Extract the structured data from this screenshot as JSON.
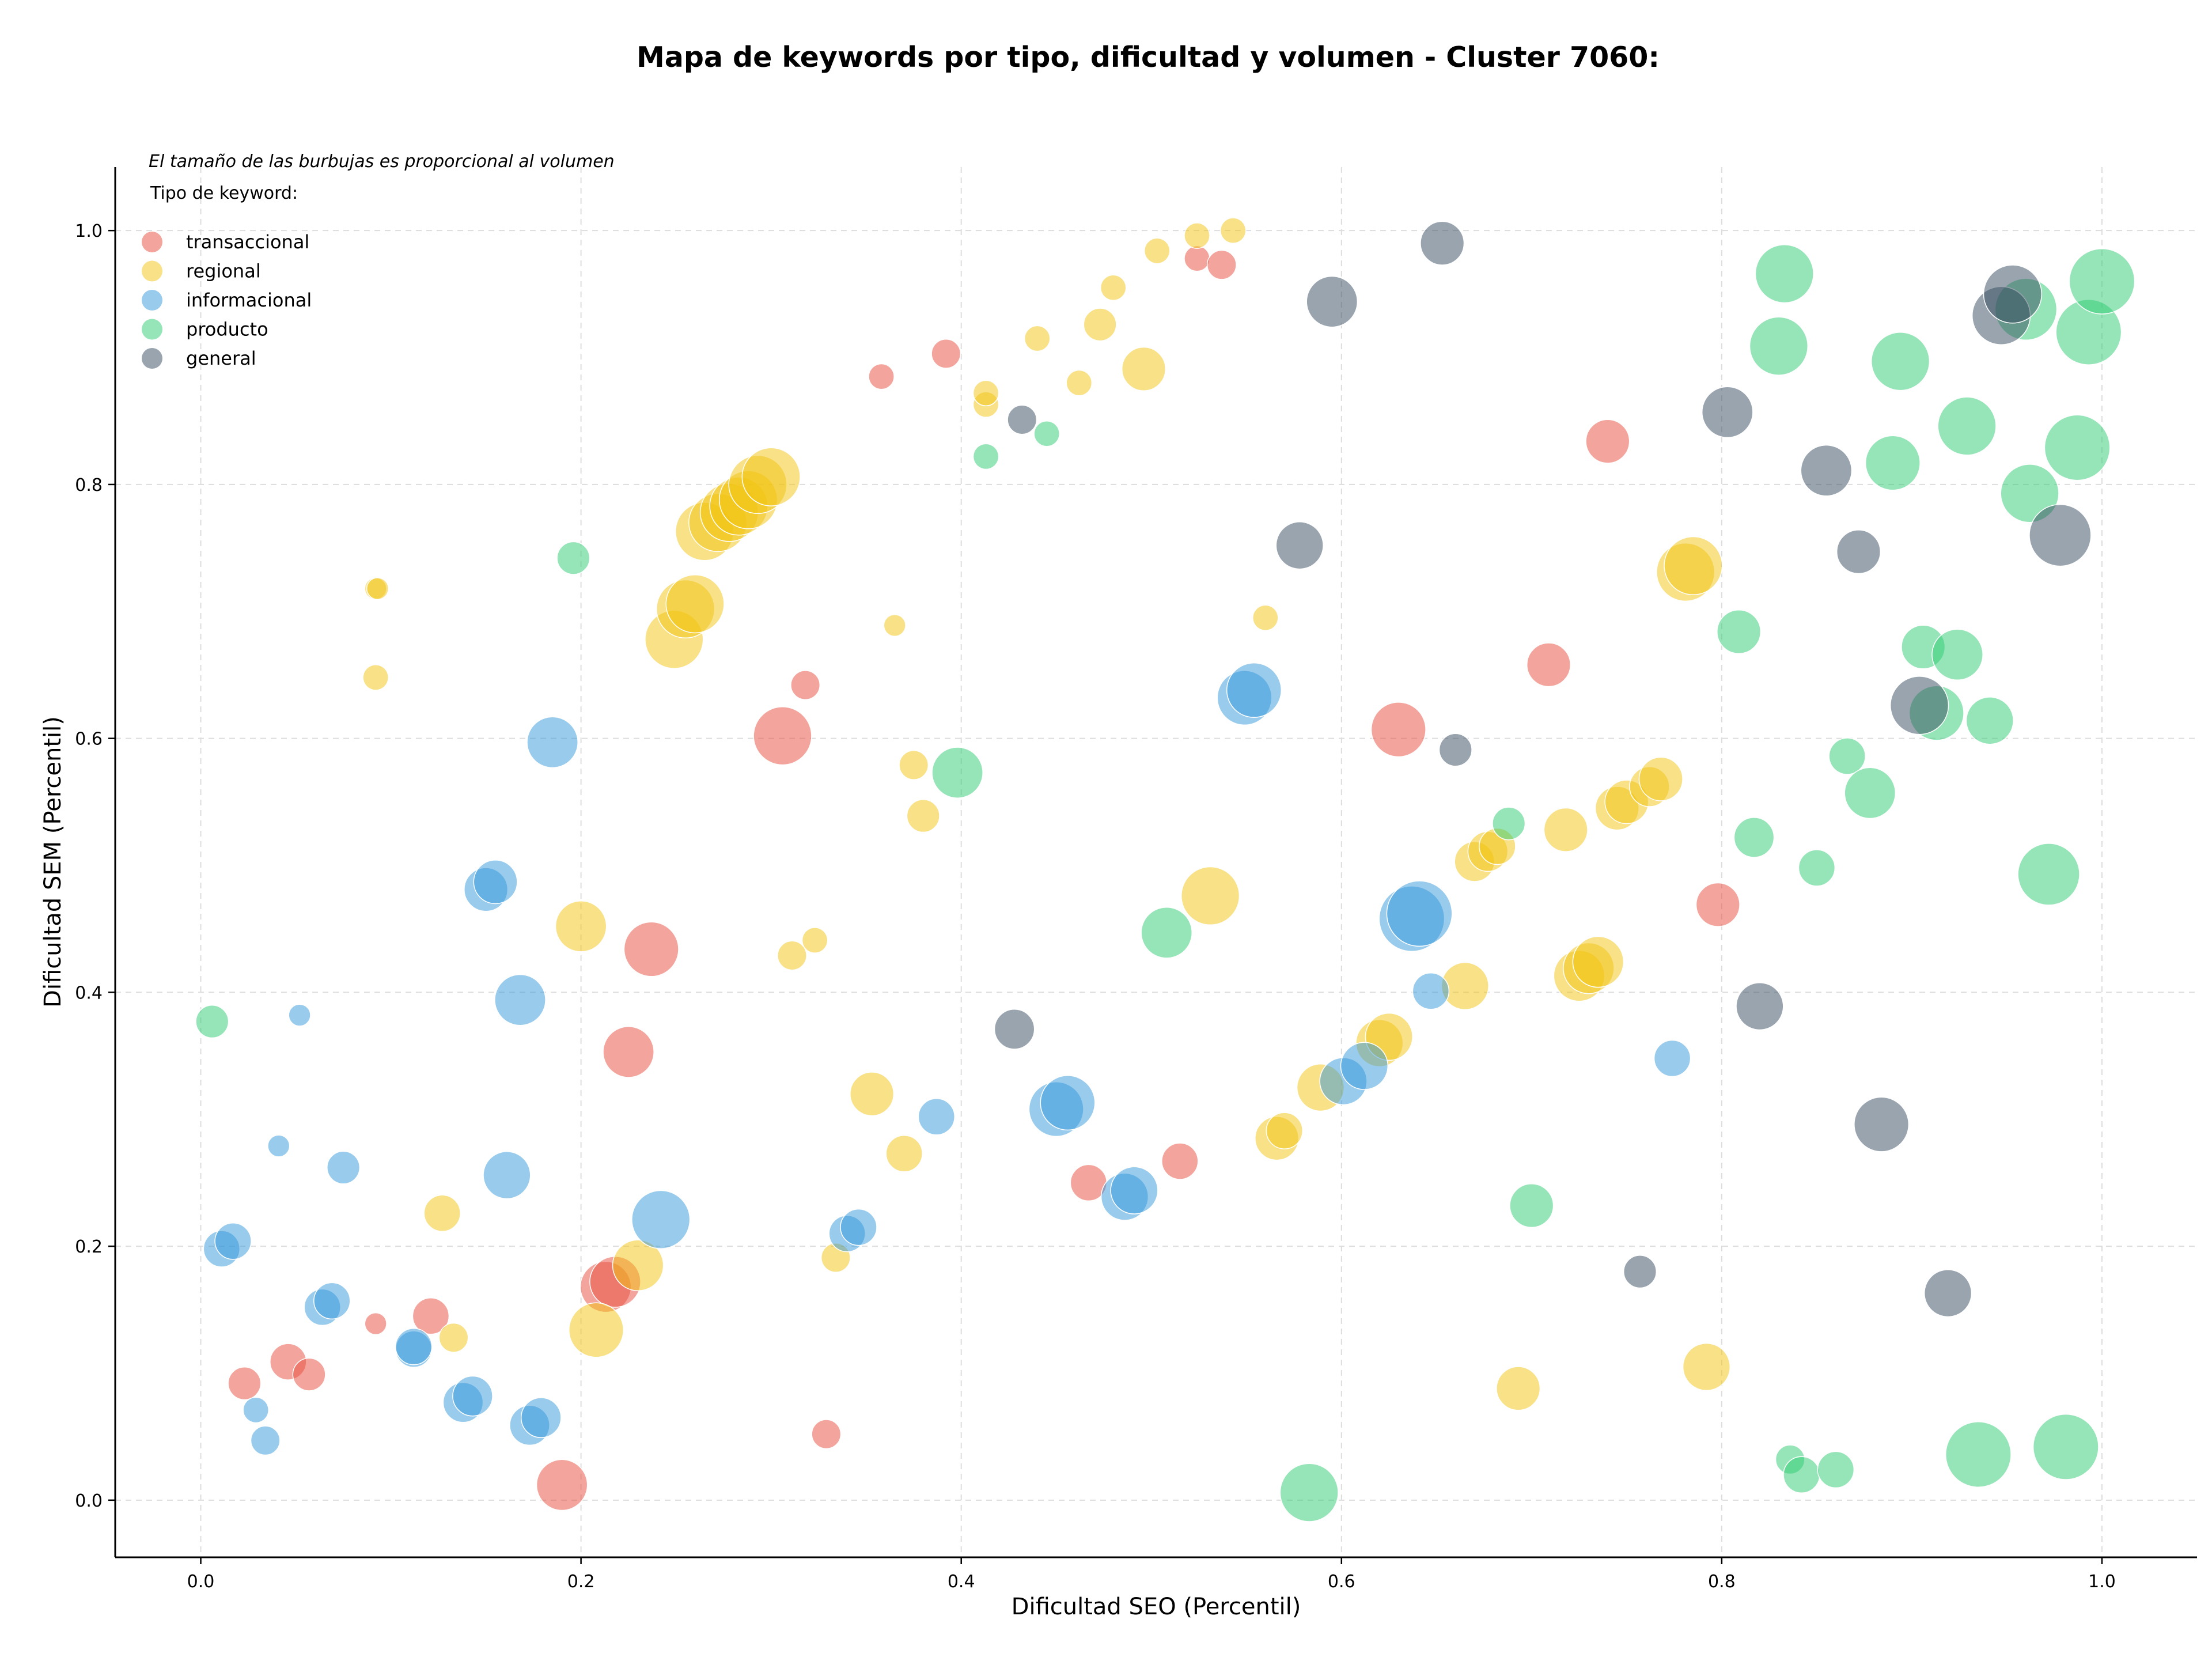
{
  "chart_data": {
    "type": "scatter",
    "title": "Mapa de keywords por tipo, dificultad y volumen - Cluster 7060:",
    "xlabel": "Dificultad SEO (Percentil)",
    "ylabel": "Dificultad SEM (Percentil)",
    "xlim": [
      -0.045,
      1.05
    ],
    "ylim": [
      -0.045,
      1.05
    ],
    "xticks": [
      0.0,
      0.2,
      0.4,
      0.6,
      0.8,
      1.0
    ],
    "yticks": [
      0.0,
      0.2,
      0.4,
      0.6,
      0.8,
      1.0
    ],
    "xtick_labels": [
      "0.0",
      "0.2",
      "0.4",
      "0.6",
      "0.8",
      "1.0"
    ],
    "ytick_labels": [
      "0.0",
      "0.2",
      "0.4",
      "0.6",
      "0.8",
      "1.0"
    ],
    "grid": true,
    "note": "El tamaño de las burbujas es proporcional al volumen",
    "legend_title": "Tipo de keyword:",
    "legend_position": "top-left",
    "series": [
      {
        "name": "transaccional",
        "color": "#e74c3c",
        "points": [
          [
            0.023,
            0.092,
            4.5
          ],
          [
            0.046,
            0.109,
            5
          ],
          [
            0.057,
            0.099,
            4.5
          ],
          [
            0.092,
            0.139,
            3
          ],
          [
            0.121,
            0.145,
            5
          ],
          [
            0.19,
            0.012,
            7
          ],
          [
            0.213,
            0.168,
            7
          ],
          [
            0.218,
            0.172,
            7
          ],
          [
            0.225,
            0.353,
            7
          ],
          [
            0.237,
            0.434,
            7.5
          ],
          [
            0.306,
            0.602,
            8
          ],
          [
            0.318,
            0.642,
            4
          ],
          [
            0.329,
            0.052,
            4
          ],
          [
            0.358,
            0.885,
            3.5
          ],
          [
            0.392,
            0.903,
            4
          ],
          [
            0.467,
            0.25,
            5
          ],
          [
            0.515,
            0.267,
            5
          ],
          [
            0.524,
            0.978,
            3.5
          ],
          [
            0.537,
            0.973,
            4
          ],
          [
            0.63,
            0.607,
            7.5
          ],
          [
            0.709,
            0.658,
            6
          ],
          [
            0.74,
            0.834,
            6
          ],
          [
            0.798,
            0.469,
            6
          ]
        ]
      },
      {
        "name": "regional",
        "color": "#f1c40f",
        "points": [
          [
            0.092,
            0.718,
            3
          ],
          [
            0.093,
            0.718,
            3
          ],
          [
            0.092,
            0.648,
            3.5
          ],
          [
            0.127,
            0.226,
            5
          ],
          [
            0.133,
            0.128,
            4
          ],
          [
            0.2,
            0.452,
            7
          ],
          [
            0.208,
            0.134,
            7.5
          ],
          [
            0.23,
            0.185,
            7
          ],
          [
            0.249,
            0.678,
            8
          ],
          [
            0.255,
            0.702,
            8
          ],
          [
            0.26,
            0.706,
            8
          ],
          [
            0.265,
            0.763,
            8
          ],
          [
            0.272,
            0.77,
            8
          ],
          [
            0.278,
            0.778,
            8
          ],
          [
            0.283,
            0.783,
            8
          ],
          [
            0.288,
            0.788,
            8
          ],
          [
            0.293,
            0.8,
            8
          ],
          [
            0.3,
            0.806,
            8
          ],
          [
            0.311,
            0.429,
            4
          ],
          [
            0.323,
            0.441,
            3.5
          ],
          [
            0.334,
            0.191,
            4
          ],
          [
            0.353,
            0.32,
            6
          ],
          [
            0.37,
            0.273,
            5
          ],
          [
            0.375,
            0.579,
            4
          ],
          [
            0.38,
            0.539,
            4.5
          ],
          [
            0.365,
            0.689,
            3
          ],
          [
            0.413,
            0.863,
            3.5
          ],
          [
            0.413,
            0.872,
            3.5
          ],
          [
            0.44,
            0.915,
            3.5
          ],
          [
            0.462,
            0.88,
            3.5
          ],
          [
            0.473,
            0.926,
            4.5
          ],
          [
            0.48,
            0.955,
            3.5
          ],
          [
            0.496,
            0.891,
            6
          ],
          [
            0.503,
            0.984,
            3.5
          ],
          [
            0.524,
            0.996,
            3.5
          ],
          [
            0.543,
            1.0,
            3.5
          ],
          [
            0.531,
            0.476,
            8
          ],
          [
            0.56,
            0.695,
            3.5
          ],
          [
            0.566,
            0.285,
            6
          ],
          [
            0.57,
            0.291,
            5
          ],
          [
            0.589,
            0.325,
            6.5
          ],
          [
            0.62,
            0.36,
            6.5
          ],
          [
            0.625,
            0.365,
            6.5
          ],
          [
            0.665,
            0.405,
            6.5
          ],
          [
            0.67,
            0.503,
            5.5
          ],
          [
            0.677,
            0.511,
            5.5
          ],
          [
            0.682,
            0.515,
            5
          ],
          [
            0.693,
            0.088,
            6
          ],
          [
            0.718,
            0.528,
            6
          ],
          [
            0.725,
            0.413,
            7
          ],
          [
            0.73,
            0.419,
            7
          ],
          [
            0.735,
            0.424,
            7
          ],
          [
            0.745,
            0.545,
            6
          ],
          [
            0.75,
            0.55,
            6
          ],
          [
            0.762,
            0.562,
            5.5
          ],
          [
            0.768,
            0.568,
            6
          ],
          [
            0.781,
            0.731,
            8
          ],
          [
            0.785,
            0.736,
            8
          ],
          [
            0.792,
            0.105,
            6.5
          ]
        ]
      },
      {
        "name": "informacional",
        "color": "#3498db",
        "points": [
          [
            0.011,
            0.198,
            5
          ],
          [
            0.017,
            0.204,
            5
          ],
          [
            0.029,
            0.071,
            3.5
          ],
          [
            0.034,
            0.047,
            4
          ],
          [
            0.041,
            0.279,
            3
          ],
          [
            0.052,
            0.382,
            3
          ],
          [
            0.064,
            0.152,
            5
          ],
          [
            0.069,
            0.157,
            5
          ],
          [
            0.075,
            0.262,
            4.5
          ],
          [
            0.112,
            0.119,
            5
          ],
          [
            0.112,
            0.121,
            5
          ],
          [
            0.138,
            0.077,
            5.5
          ],
          [
            0.143,
            0.082,
            5.5
          ],
          [
            0.15,
            0.481,
            6
          ],
          [
            0.155,
            0.487,
            6
          ],
          [
            0.161,
            0.256,
            6.5
          ],
          [
            0.168,
            0.394,
            7
          ],
          [
            0.173,
            0.059,
            5.5
          ],
          [
            0.179,
            0.065,
            5.5
          ],
          [
            0.185,
            0.597,
            7
          ],
          [
            0.242,
            0.221,
            8
          ],
          [
            0.34,
            0.21,
            5
          ],
          [
            0.346,
            0.215,
            5
          ],
          [
            0.387,
            0.302,
            5
          ],
          [
            0.45,
            0.308,
            7.5
          ],
          [
            0.456,
            0.313,
            7.5
          ],
          [
            0.486,
            0.239,
            6.5
          ],
          [
            0.491,
            0.244,
            6.5
          ],
          [
            0.549,
            0.632,
            7.5
          ],
          [
            0.554,
            0.638,
            7.5
          ],
          [
            0.601,
            0.33,
            6.5
          ],
          [
            0.612,
            0.342,
            6.5
          ],
          [
            0.637,
            0.458,
            9
          ],
          [
            0.641,
            0.462,
            9
          ],
          [
            0.647,
            0.401,
            5
          ],
          [
            0.774,
            0.348,
            5
          ]
        ]
      },
      {
        "name": "producto",
        "color": "#2ecc71",
        "points": [
          [
            0.006,
            0.377,
            4.5
          ],
          [
            0.196,
            0.742,
            4.5
          ],
          [
            0.398,
            0.573,
            7
          ],
          [
            0.413,
            0.822,
            3.5
          ],
          [
            0.445,
            0.84,
            3.5
          ],
          [
            0.508,
            0.447,
            7
          ],
          [
            0.583,
            0.006,
            8
          ],
          [
            0.688,
            0.533,
            4.5
          ],
          [
            0.7,
            0.232,
            6
          ],
          [
            0.809,
            0.684,
            6
          ],
          [
            0.817,
            0.522,
            5.5
          ],
          [
            0.833,
            0.966,
            8
          ],
          [
            0.83,
            0.909,
            8
          ],
          [
            0.836,
            0.032,
            4
          ],
          [
            0.842,
            0.02,
            5
          ],
          [
            0.86,
            0.024,
            5
          ],
          [
            0.85,
            0.498,
            5
          ],
          [
            0.866,
            0.586,
            5
          ],
          [
            0.878,
            0.557,
            7
          ],
          [
            0.89,
            0.817,
            7.5
          ],
          [
            0.894,
            0.897,
            8
          ],
          [
            0.906,
            0.672,
            6
          ],
          [
            0.913,
            0.62,
            7.5
          ],
          [
            0.924,
            0.666,
            7
          ],
          [
            0.929,
            0.846,
            8
          ],
          [
            0.935,
            0.036,
            9
          ],
          [
            0.941,
            0.614,
            6.5
          ],
          [
            0.96,
            0.938,
            8.5
          ],
          [
            0.962,
            0.793,
            8
          ],
          [
            0.972,
            0.493,
            8.5
          ],
          [
            0.981,
            0.042,
            9
          ],
          [
            0.993,
            0.92,
            9
          ],
          [
            0.987,
            0.829,
            9
          ],
          [
            1.0,
            0.96,
            9
          ]
        ]
      },
      {
        "name": "general",
        "color": "#34495e",
        "points": [
          [
            0.428,
            0.371,
            5.5
          ],
          [
            0.432,
            0.851,
            4
          ],
          [
            0.578,
            0.752,
            6.5
          ],
          [
            0.595,
            0.944,
            7
          ],
          [
            0.653,
            0.99,
            6
          ],
          [
            0.66,
            0.591,
            4.5
          ],
          [
            0.757,
            0.18,
            4.5
          ],
          [
            0.803,
            0.857,
            7
          ],
          [
            0.82,
            0.389,
            6.5
          ],
          [
            0.855,
            0.811,
            7
          ],
          [
            0.872,
            0.747,
            6
          ],
          [
            0.884,
            0.296,
            7.5
          ],
          [
            0.904,
            0.626,
            8
          ],
          [
            0.919,
            0.163,
            6.5
          ],
          [
            0.947,
            0.933,
            8
          ],
          [
            0.953,
            0.95,
            8
          ],
          [
            0.978,
            0.76,
            8.5
          ]
        ]
      }
    ]
  }
}
